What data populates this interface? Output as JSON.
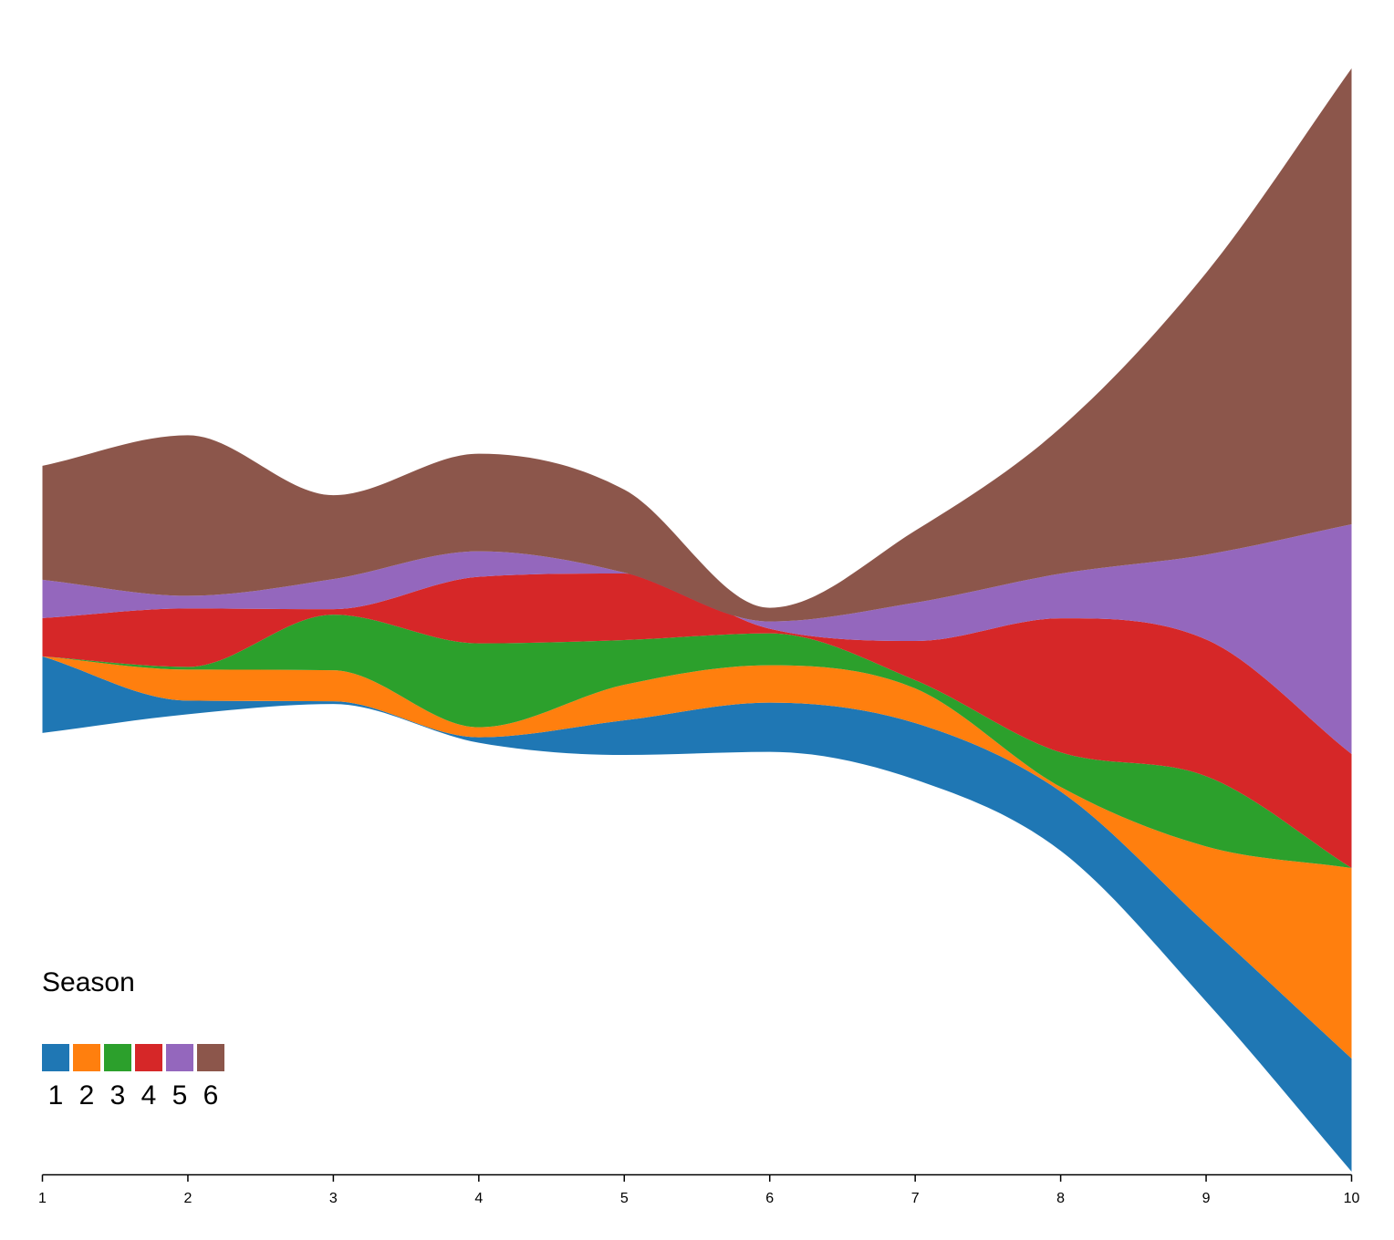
{
  "chart_data": {
    "type": "area",
    "stack_offset": "wiggle",
    "curve": "smooth",
    "x": [
      1,
      2,
      3,
      4,
      5,
      6,
      7,
      8,
      9,
      10
    ],
    "x_tick_labels": [
      "1",
      "2",
      "3",
      "4",
      "5",
      "6",
      "7",
      "8",
      "9",
      "10"
    ],
    "xlim": [
      1,
      10
    ],
    "y_axis_visible": false,
    "grid": false,
    "series": [
      {
        "name": "1",
        "color": "#1f77b4",
        "values": [
          8.4,
          1.5,
          0.3,
          0.6,
          3.8,
          5.4,
          6.2,
          6.5,
          8.5,
          12.4
        ]
      },
      {
        "name": "2",
        "color": "#ff7f0e",
        "values": [
          0.0,
          3.4,
          3.4,
          1.1,
          3.9,
          4.1,
          3.8,
          0.5,
          8.5,
          20.9
        ]
      },
      {
        "name": "3",
        "color": "#2ca02c",
        "values": [
          0.0,
          0.3,
          6.1,
          9.2,
          4.9,
          3.5,
          0.9,
          3.8,
          7.7,
          0.0
        ]
      },
      {
        "name": "4",
        "color": "#d62728",
        "values": [
          4.2,
          6.4,
          0.6,
          7.3,
          7.3,
          0.5,
          4.3,
          14.7,
          15.0,
          12.5
        ]
      },
      {
        "name": "5",
        "color": "#9467bd",
        "values": [
          4.2,
          1.4,
          3.3,
          2.8,
          0.1,
          0.8,
          4.2,
          4.9,
          9.3,
          25.2
        ]
      },
      {
        "name": "6",
        "color": "#8c564b",
        "values": [
          12.5,
          17.6,
          9.2,
          10.7,
          9.1,
          1.5,
          7.9,
          16.0,
          30.9,
          50.0
        ]
      }
    ],
    "legend": {
      "title": "Season",
      "placement": "bottom-left",
      "entries": [
        "1",
        "2",
        "3",
        "4",
        "5",
        "6"
      ]
    }
  }
}
